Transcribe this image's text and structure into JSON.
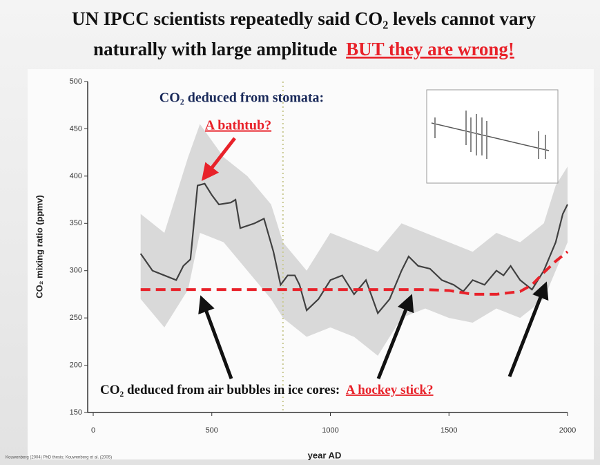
{
  "chart_data": {
    "type": "line",
    "title_line1": "UN IPCC scientists repeatedly said CO₂ levels cannot vary",
    "title_line2": "naturally with large amplitude",
    "title_highlight": "BUT they are wrong!",
    "xlabel": "year AD",
    "ylabel": "CO₂ mixing ratio (ppmv)",
    "annotations": {
      "stomata": "CO₂ deduced from stomata:",
      "bathtub": "A bathtub?",
      "ice": "CO₂ deduced from air bubbles in ice cores:",
      "hockey": "A hockey stick?"
    },
    "source": "Kouwenberg (2004) PhD thesis; Kouwenberg et al. (2005)",
    "xlim": [
      0,
      2000
    ],
    "ylim": [
      150,
      500
    ],
    "xticks": [
      0,
      500,
      1000,
      1500,
      2000
    ],
    "yticks": [
      150,
      200,
      250,
      300,
      350,
      400,
      450,
      500
    ],
    "vline": 800,
    "band": {
      "color": "#d9d9d9",
      "x": [
        200,
        300,
        400,
        450,
        550,
        650,
        750,
        800,
        900,
        1000,
        1100,
        1200,
        1300,
        1400,
        1500,
        1600,
        1700,
        1800,
        1900,
        1950,
        2000
      ],
      "lower": [
        270,
        240,
        280,
        340,
        330,
        300,
        270,
        250,
        230,
        240,
        230,
        210,
        250,
        260,
        250,
        245,
        260,
        250,
        270,
        300,
        330
      ],
      "upper": [
        360,
        340,
        420,
        455,
        420,
        400,
        370,
        330,
        300,
        340,
        330,
        320,
        350,
        340,
        330,
        320,
        340,
        330,
        350,
        390,
        410
      ]
    },
    "series": [
      {
        "name": "stomata",
        "color": "#404040",
        "dashed": false,
        "x": [
          200,
          250,
          300,
          350,
          380,
          410,
          440,
          470,
          500,
          530,
          580,
          600,
          620,
          680,
          720,
          760,
          790,
          820,
          850,
          870,
          900,
          950,
          1000,
          1050,
          1100,
          1150,
          1200,
          1250,
          1300,
          1330,
          1370,
          1420,
          1470,
          1520,
          1560,
          1600,
          1650,
          1700,
          1730,
          1760,
          1800,
          1850,
          1900,
          1950,
          1980,
          2000
        ],
        "values": [
          318,
          300,
          295,
          290,
          305,
          312,
          390,
          392,
          380,
          370,
          372,
          375,
          345,
          350,
          355,
          320,
          285,
          295,
          295,
          285,
          258,
          270,
          290,
          295,
          275,
          290,
          255,
          270,
          300,
          315,
          305,
          302,
          290,
          285,
          278,
          290,
          285,
          300,
          295,
          305,
          290,
          280,
          300,
          330,
          360,
          370
        ]
      },
      {
        "name": "ice cores",
        "color": "#e8222a",
        "dashed": true,
        "x": [
          200,
          500,
          800,
          1100,
          1400,
          1500,
          1600,
          1700,
          1800,
          1850,
          1900,
          1950,
          2000
        ],
        "values": [
          280,
          280,
          280,
          280,
          280,
          279,
          275,
          275,
          278,
          285,
          298,
          310,
          320
        ]
      }
    ]
  }
}
